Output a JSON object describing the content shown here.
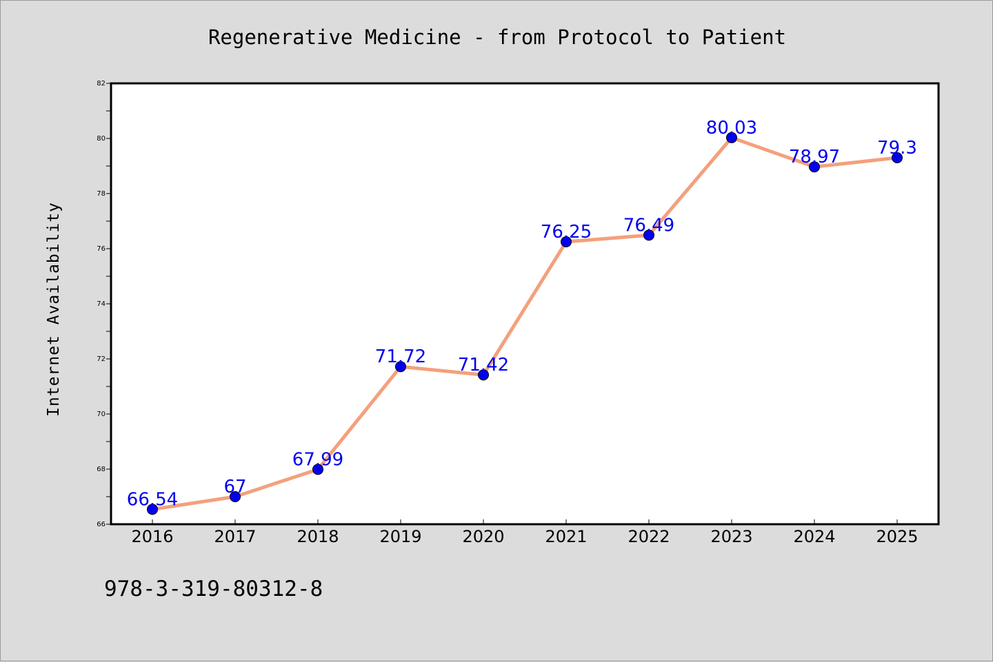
{
  "chart_data": {
    "type": "line",
    "title": "Regenerative Medicine - from Protocol to Patient",
    "xlabel": "",
    "ylabel": "Internet Availability",
    "categories": [
      "2016",
      "2017",
      "2018",
      "2019",
      "2020",
      "2021",
      "2022",
      "2023",
      "2024",
      "2025"
    ],
    "series": [
      {
        "values": [
          66.54,
          67,
          67.99,
          71.72,
          71.42,
          76.25,
          76.49,
          80.03,
          78.97,
          79.3
        ],
        "labels": [
          "66.54",
          "67",
          "67.99",
          "71.72",
          "71.42",
          "76.25",
          "76.49",
          "80.03",
          "78.97",
          "79.3"
        ],
        "line_color": "#f4a07c",
        "marker_color": "#0000ee",
        "label_color": "#0000ee"
      }
    ],
    "ylim": [
      66,
      82
    ],
    "yticks": [
      "66",
      "68",
      "70",
      "72",
      "74",
      "76",
      "78",
      "80",
      "82"
    ],
    "grid": false,
    "legend": "none"
  },
  "footer": {
    "isbn": "978-3-319-80312-8"
  },
  "colors": {
    "background": "#dcdcdc",
    "plot_background": "#ffffff"
  }
}
